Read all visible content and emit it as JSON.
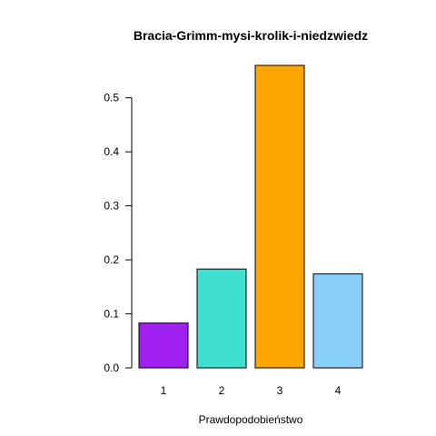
{
  "chart_data": {
    "type": "bar",
    "title": "Bracia-Grimm-mysi-krolik-i-niedzwiedz",
    "xlabel": "Prawdopodobieństwo",
    "ylabel": "",
    "categories": [
      "1",
      "2",
      "3",
      "4"
    ],
    "values": [
      0.083,
      0.183,
      0.56,
      0.174
    ],
    "colors": [
      "#A020F0",
      "#40E0D0",
      "#FFA500",
      "#87CEFA"
    ],
    "y_ticks": [
      0.0,
      0.1,
      0.2,
      0.3,
      0.4,
      0.5
    ],
    "y_tick_labels": [
      "0.0",
      "0.1",
      "0.2",
      "0.3",
      "0.4",
      "0.5"
    ],
    "ylim": [
      0,
      0.56
    ],
    "grid": false,
    "legend": "none"
  }
}
